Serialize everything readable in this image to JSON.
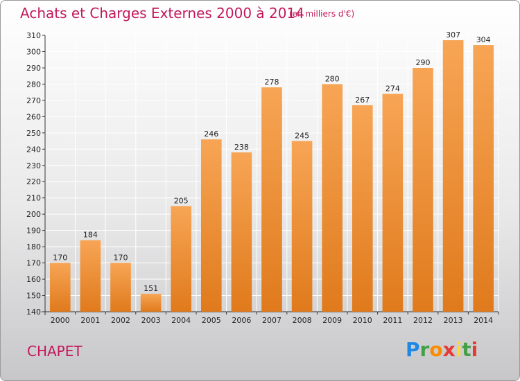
{
  "header": {
    "title": "Achats et Charges Externes 2000 à 2014",
    "unit": "(en milliers d'€)"
  },
  "footer": {
    "commune": "CHAPET",
    "logo_text": "Proxiti"
  },
  "colors": {
    "bar_light": "#f7a555",
    "bar_dark": "#e07a1c",
    "title": "#c2185b",
    "grid": "#ffffff"
  },
  "chart_data": {
    "type": "bar",
    "title": "Achats et Charges Externes 2000 à 2014",
    "subtitle": "(en milliers d'€)",
    "xlabel": "",
    "ylabel": "",
    "categories": [
      "2000",
      "2001",
      "2002",
      "2003",
      "2004",
      "2005",
      "2006",
      "2007",
      "2008",
      "2009",
      "2010",
      "2011",
      "2012",
      "2013",
      "2014"
    ],
    "values": [
      170,
      184,
      170,
      151,
      205,
      246,
      238,
      278,
      245,
      280,
      267,
      274,
      290,
      307,
      304
    ],
    "ylim": [
      140,
      310
    ],
    "yticks": [
      140,
      150,
      160,
      170,
      180,
      190,
      200,
      210,
      220,
      230,
      240,
      250,
      260,
      270,
      280,
      290,
      300,
      310
    ],
    "grid": true,
    "legend": "none"
  }
}
